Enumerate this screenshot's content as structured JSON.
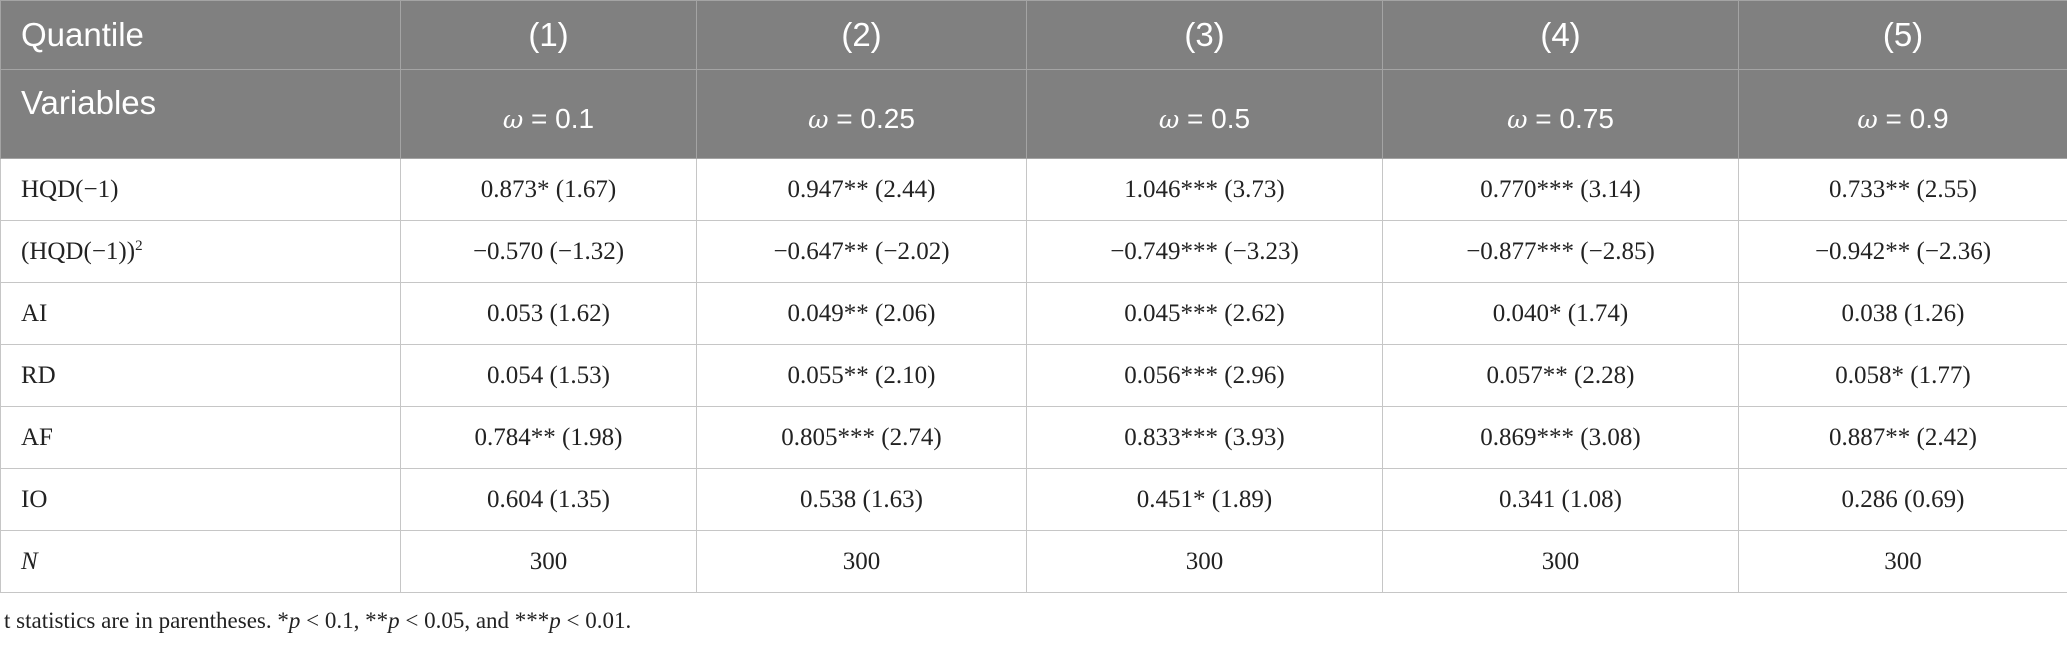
{
  "header": {
    "row1": [
      "Quantile",
      "(1)",
      "(2)",
      "(3)",
      "(4)",
      "(5)"
    ],
    "row2_label": "Variables",
    "omega_symbol": "ω",
    "omega_values": [
      "= 0.1",
      "= 0.25",
      "= 0.5",
      "= 0.75",
      "= 0.9"
    ]
  },
  "rows": [
    {
      "label": "HQD(−1)",
      "values": [
        "0.873* (1.67)",
        "0.947** (2.44)",
        "1.046*** (3.73)",
        "0.770*** (3.14)",
        "0.733** (2.55)"
      ]
    },
    {
      "label": "(HQD(−1))",
      "label_sup": "2",
      "values": [
        "−0.570 (−1.32)",
        "−0.647** (−2.02)",
        "−0.749*** (−3.23)",
        "−0.877*** (−2.85)",
        "−0.942** (−2.36)"
      ]
    },
    {
      "label": "AI",
      "values": [
        "0.053 (1.62)",
        "0.049** (2.06)",
        "0.045*** (2.62)",
        "0.040* (1.74)",
        "0.038 (1.26)"
      ]
    },
    {
      "label": "RD",
      "values": [
        "0.054 (1.53)",
        "0.055** (2.10)",
        "0.056*** (2.96)",
        "0.057** (2.28)",
        "0.058* (1.77)"
      ]
    },
    {
      "label": "AF",
      "values": [
        "0.784** (1.98)",
        "0.805*** (2.74)",
        "0.833*** (3.93)",
        "0.869*** (3.08)",
        "0.887** (2.42)"
      ]
    },
    {
      "label": "IO",
      "values": [
        "0.604 (1.35)",
        "0.538 (1.63)",
        "0.451* (1.89)",
        "0.341 (1.08)",
        "0.286 (0.69)"
      ]
    },
    {
      "label": "N",
      "values": [
        "300",
        "300",
        "300",
        "300",
        "300"
      ]
    }
  ],
  "footnote": {
    "t1": "t statistics are in parentheses. *",
    "p": "p",
    "t2": " < 0.1, **",
    "t3": " < 0.05, and ***",
    "t4": " < 0.01."
  }
}
